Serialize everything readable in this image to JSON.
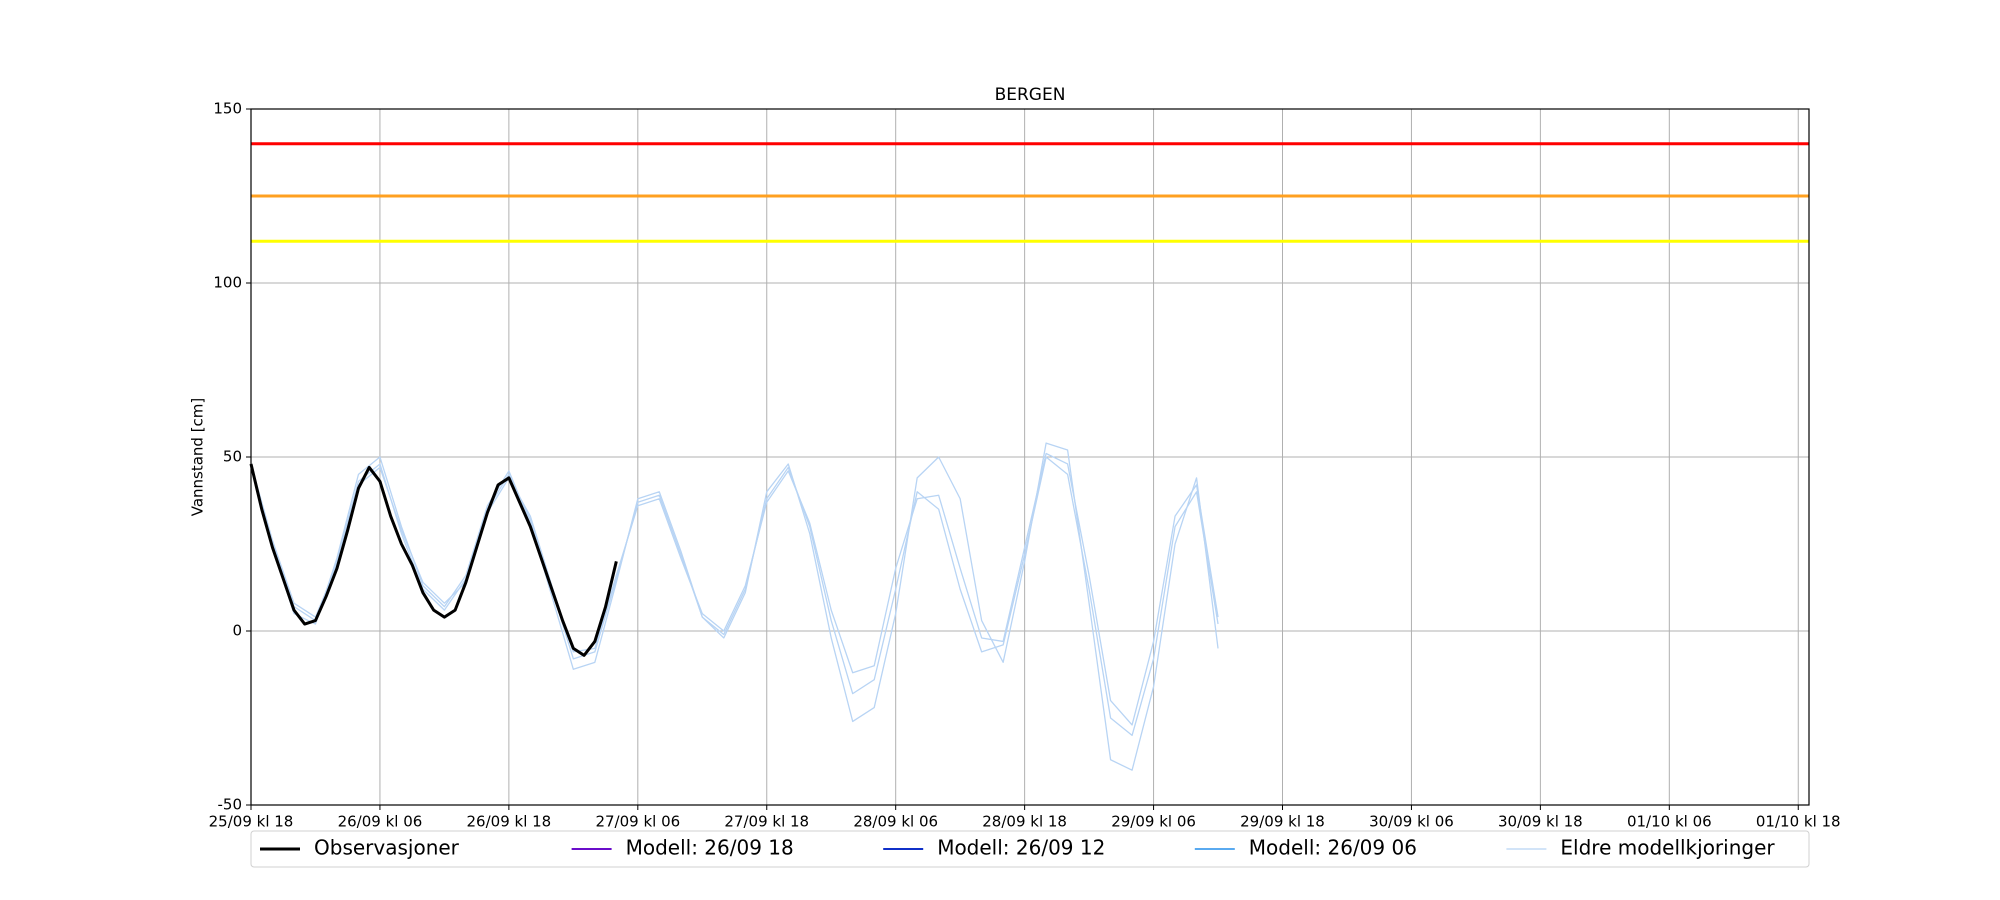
{
  "chart_data": {
    "type": "line",
    "title": "BERGEN",
    "y_label": "Vannstand [cm]",
    "xlim": [
      0,
      145
    ],
    "xticks": [
      {
        "value": 0,
        "label": "25/09 kl 18"
      },
      {
        "value": 12,
        "label": "26/09 kl 06"
      },
      {
        "value": 24,
        "label": "26/09 kl 18"
      },
      {
        "value": 36,
        "label": "27/09 kl 06"
      },
      {
        "value": 48,
        "label": "27/09 kl 18"
      },
      {
        "value": 60,
        "label": "28/09 kl 06"
      },
      {
        "value": 72,
        "label": "28/09 kl 18"
      },
      {
        "value": 84,
        "label": "29/09 kl 06"
      },
      {
        "value": 96,
        "label": "29/09 kl 18"
      },
      {
        "value": 108,
        "label": "30/09 kl 06"
      },
      {
        "value": 120,
        "label": "30/09 kl 18"
      },
      {
        "value": 132,
        "label": "01/10 kl 06"
      },
      {
        "value": 144,
        "label": "01/10 kl 18"
      }
    ],
    "ylim": [
      -50,
      150
    ],
    "yticks": [
      -50,
      0,
      50,
      100,
      150
    ],
    "grid": true,
    "hlines": [
      {
        "value": 140,
        "color": "#ff0000"
      },
      {
        "value": 125,
        "color": "#ffa020"
      },
      {
        "value": 112,
        "color": "#ffff00"
      }
    ],
    "series": [
      {
        "name": "Observasjoner",
        "color": "#000000",
        "width": 3,
        "x": [
          0,
          1,
          2,
          3,
          4,
          5,
          6,
          7,
          8,
          9,
          10,
          11,
          12,
          13,
          14,
          15,
          16,
          17,
          18,
          19,
          20,
          21,
          22,
          23,
          24,
          25,
          26,
          27,
          28,
          29,
          30,
          31,
          32,
          33,
          34
        ],
        "values": [
          48,
          35,
          24,
          15,
          6,
          2,
          3,
          10,
          18,
          29,
          41,
          47,
          43,
          33,
          25,
          19,
          11,
          6,
          4,
          6,
          14,
          24,
          34,
          42,
          44,
          37,
          30,
          21,
          12,
          3,
          -5,
          -7,
          -3,
          7,
          20
        ]
      },
      {
        "name": "Modell: 26/09 18",
        "color": "#6a0dca",
        "width": 2,
        "x": [],
        "values": []
      },
      {
        "name": "Modell: 26/09 12",
        "color": "#1030c8",
        "width": 2,
        "x": [],
        "values": []
      },
      {
        "name": "Modell: 26/09 06",
        "color": "#5aaaf0",
        "width": 2,
        "x": [],
        "values": []
      },
      {
        "name": "Eldre modellkjoringer",
        "color": "#b8d4f4",
        "width": 1.3,
        "x": [
          0,
          2,
          4,
          6,
          8,
          10,
          12,
          14,
          16,
          18,
          20,
          22,
          24,
          26,
          28,
          30,
          32,
          34,
          36,
          38,
          40,
          42,
          44,
          46,
          48,
          50,
          52,
          54,
          56,
          58,
          60,
          62,
          64,
          66,
          68,
          70,
          72,
          74,
          76,
          78,
          80,
          82,
          84,
          86,
          88,
          90
        ],
        "values": [
          48,
          25,
          7,
          3,
          20,
          43,
          48,
          28,
          12,
          6,
          15,
          35,
          45,
          32,
          12,
          -8,
          -6,
          15,
          37,
          39,
          22,
          4,
          -1,
          12,
          38,
          47,
          30,
          3,
          -18,
          -14,
          12,
          40,
          35,
          12,
          -6,
          -4,
          22,
          50,
          45,
          12,
          -25,
          -30,
          -8,
          30,
          40,
          2
        ]
      },
      {
        "name": null,
        "color": "#b8d4f4",
        "width": 1.3,
        "x": [
          0,
          2,
          4,
          6,
          8,
          10,
          12,
          14,
          16,
          18,
          20,
          22,
          24,
          26,
          28,
          30,
          32,
          34,
          36,
          38,
          40,
          42,
          44,
          46,
          48,
          50,
          52,
          54,
          56,
          58,
          60,
          62,
          64,
          66,
          68,
          70,
          72,
          74,
          76,
          78,
          80,
          82,
          84,
          86,
          88,
          90
        ],
        "values": [
          48,
          24,
          5,
          2,
          21,
          45,
          50,
          30,
          13,
          7,
          16,
          36,
          46,
          31,
          10,
          -11,
          -9,
          14,
          38,
          40,
          23,
          4,
          -2,
          11,
          40,
          48,
          28,
          -2,
          -26,
          -22,
          5,
          44,
          50,
          38,
          3,
          -9,
          20,
          54,
          52,
          8,
          -37,
          -40,
          -16,
          25,
          44,
          -5
        ]
      },
      {
        "name": null,
        "color": "#b8d4f4",
        "width": 1.3,
        "x": [
          0,
          2,
          4,
          6,
          8,
          10,
          12,
          14,
          16,
          18,
          20,
          22,
          24,
          26,
          28,
          30,
          32,
          34,
          36,
          38,
          40,
          42,
          44,
          46,
          48,
          50,
          52,
          54,
          56,
          58,
          60,
          62,
          64,
          66,
          68,
          70,
          72,
          74,
          76,
          78,
          80,
          82,
          84,
          86,
          88,
          90
        ],
        "values": [
          48,
          26,
          8,
          4,
          19,
          42,
          47,
          29,
          14,
          8,
          14,
          34,
          44,
          33,
          13,
          -6,
          -5,
          16,
          36,
          38,
          21,
          5,
          0,
          13,
          37,
          46,
          31,
          6,
          -12,
          -10,
          18,
          38,
          39,
          18,
          -2,
          -3,
          24,
          51,
          48,
          16,
          -20,
          -27,
          -3,
          33,
          42,
          4
        ]
      }
    ]
  }
}
